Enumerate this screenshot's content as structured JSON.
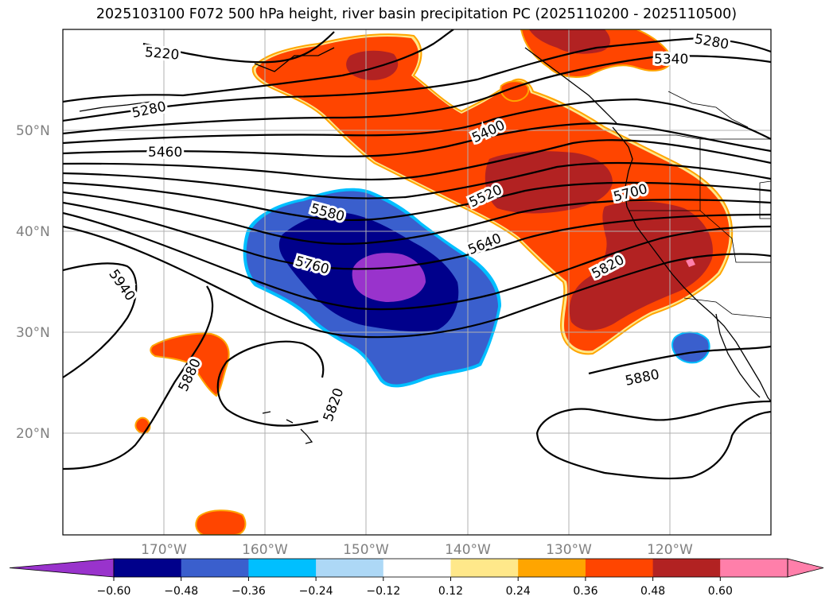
{
  "title": "2025103100 F072 500 hPa height, river basin precipitation PC (2025110200 - 2025110500)",
  "map": {
    "lat_labels": [
      "50°N",
      "40°N",
      "30°N",
      "20°N"
    ],
    "lon_labels": [
      "170°W",
      "160°W",
      "150°W",
      "140°W",
      "130°W",
      "120°W"
    ],
    "lat_range": [
      10,
      60
    ],
    "lon_range": [
      -180,
      -110
    ],
    "height_contours": [
      {
        "label": "5220"
      },
      {
        "label": "5280"
      },
      {
        "label": "5280"
      },
      {
        "label": "5340"
      },
      {
        "label": "5400"
      },
      {
        "label": "5460"
      },
      {
        "label": "5520"
      },
      {
        "label": "5580"
      },
      {
        "label": "5640"
      },
      {
        "label": "5700"
      },
      {
        "label": "5760"
      },
      {
        "label": "5820"
      },
      {
        "label": "5820"
      },
      {
        "label": "5880"
      },
      {
        "label": "5880"
      },
      {
        "label": "5940"
      }
    ]
  },
  "colorbar": {
    "ticks": [
      "−0.60",
      "−0.48",
      "−0.36",
      "−0.24",
      "−0.12",
      "0.12",
      "0.24",
      "0.36",
      "0.48",
      "0.60"
    ],
    "colors": [
      "#9933cc",
      "#00008b",
      "#3a5fcd",
      "#00bfff",
      "#add8f6",
      "#ffffff",
      "#ffe88a",
      "#ffa500",
      "#ff4500",
      "#b22222",
      "#ff7faa",
      "#ff7faa"
    ],
    "extend": "both"
  },
  "colors": {
    "pos_strong": "#b22222",
    "pos_mid": "#ff4500",
    "pos_edge": "#ffa500",
    "pos_weak": "#ffe88a",
    "pos_max": "#ff7faa",
    "neg_max": "#9933cc",
    "neg_strong": "#00008b",
    "neg_mid": "#3a5fcd",
    "neg_edge": "#00bfff",
    "grid": "#b0b0b0"
  }
}
